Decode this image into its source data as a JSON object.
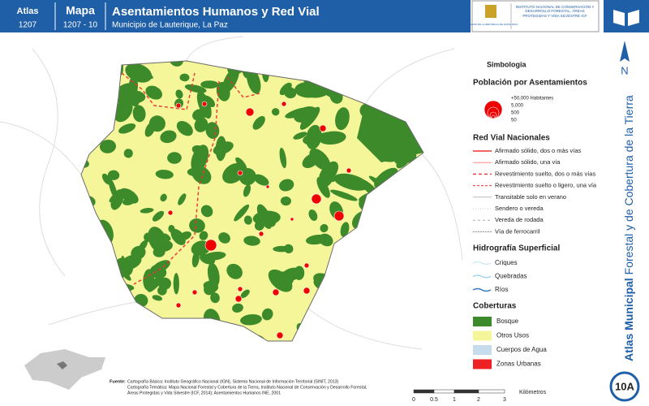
{
  "header": {
    "atlas_label": "Atlas",
    "atlas_number": "1207",
    "map_label": "Mapa",
    "map_number": "1207 - 10",
    "title": "Asentamientos Humanos y Red Vial",
    "subtitle": "Municipio de Lauterique, La Paz"
  },
  "logos": {
    "left": "GOBIERNO DE LA REPÚBLICA DE HONDURAS",
    "right": "INSTITUTO NACIONAL DE CONSERVACIÓN Y DESARROLLO FORESTAL, ÁREAS PROTEGIDAS Y VIDA SILVESTRE ICF"
  },
  "legend": {
    "title": "Simbología",
    "population": {
      "title": "Población por Asentamientos",
      "sizes": [
        "+50,000 Habitantes",
        "5,000",
        "500",
        "50"
      ]
    },
    "roads": {
      "title": "Red Vial Nacionales",
      "items": [
        "Afirmado sólido, dos o más vías",
        "Afirmado sólido, una vía",
        "Revestimiento suelto, dos o más vías",
        "Revestimiento suelto o ligero, una vía",
        "Transitable solo en verano",
        "Sendero o vereda",
        "Vereda de rodada",
        "Vía de ferrocarril"
      ]
    },
    "hydro": {
      "title": "Hidrografía Superficial",
      "items": [
        "Criques",
        "Quebradas",
        "Ríos"
      ]
    },
    "cover": {
      "title": "Coberturas",
      "items": [
        {
          "name": "Bosque",
          "color": "#3c8a2a"
        },
        {
          "name": "Otros Usos",
          "color": "#f5f59a"
        },
        {
          "name": "Cuerpos de Agua",
          "color": "#c6dced"
        },
        {
          "name": "Zonas Urbanas",
          "color": "#ee2222"
        }
      ]
    }
  },
  "sidebar": {
    "north": "N",
    "bold": "Atlas Municipal",
    "rest": "Forestal y de Cobertura de la Tierra",
    "badge": "10A"
  },
  "scale": {
    "ticks": [
      "0",
      "0.5",
      "1",
      "2",
      "3"
    ],
    "unit": "Kilómetros"
  },
  "source": {
    "label": "Fuente:",
    "lines": [
      "Cartografía Básica: Instituto Geográfico Nacional (IGN), Sistema Nacional de Información Territorial (SINIT, 2013)",
      "Cartografía Temática: Mapa Nacional Forestal y Cobertura de la Tierra, Instituto Nacional de Conservación y Desarrollo Forestal,",
      "Áreas Protegidas y Vida Silvestre (ICF, 2014); Asentamientos Humanos INE, 2001"
    ]
  }
}
